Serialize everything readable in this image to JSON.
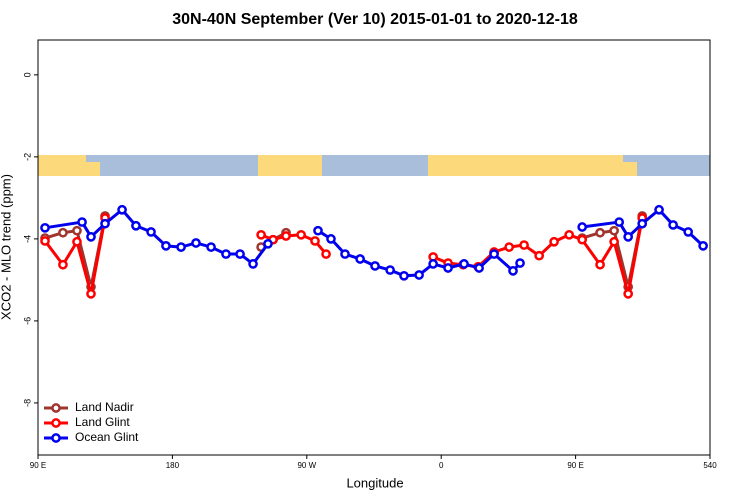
{
  "chart_data": {
    "type": "line",
    "title": "30N-40N September (Ver 10)   2015-01-01 to 2020-12-18",
    "xlabel": "Longitude",
    "ylabel": "XCO2 - MLO trend (ppm)",
    "xlim": [
      90,
      540
    ],
    "ylim": [
      -9.27,
      0.85
    ],
    "xticks": [
      {
        "value": 90,
        "label": "90 E"
      },
      180,
      {
        "value": 270,
        "label": "90 W"
      },
      {
        "value": 360,
        "label": "0"
      },
      {
        "value": 450,
        "label": "90 E"
      },
      540
    ],
    "yticks": [
      0,
      -2,
      -4,
      -6,
      -8
    ],
    "legend": "bottom-left",
    "series": [
      {
        "name": "Land Nadir",
        "color": "#a0342f",
        "x": [
          94.7,
          106.7,
          116.1,
          125.5,
          134.9,
          null,
          239.4,
          247.4,
          256.1,
          null,
          395.4,
          null,
          454.4,
          466.4,
          475.8,
          485.2,
          494.6
        ],
        "values": [
          -3.98,
          -3.85,
          -3.8,
          -5.17,
          -3.44,
          null,
          -4.2,
          -4.02,
          -3.85,
          null,
          -4.34,
          null,
          -3.98,
          -3.85,
          -3.8,
          -5.17,
          -3.44
        ]
      },
      {
        "name": "Land Glint",
        "color": "#ff0000",
        "x": [
          94.7,
          106.7,
          116.1,
          125.5,
          134.9,
          null,
          239.4,
          247.4,
          256.1,
          266.2,
          275.5,
          282.9,
          null,
          354.6,
          364.6,
          374.7,
          384.7,
          395.4,
          405.5,
          415.5,
          425.6,
          435.6,
          445.7,
          454.4,
          466.4,
          475.8,
          485.2,
          494.6
        ],
        "values": [
          -4.05,
          -4.63,
          -4.07,
          -5.34,
          -3.49,
          null,
          -3.9,
          -4.02,
          -3.93,
          -3.9,
          -4.05,
          -4.37,
          null,
          -4.44,
          -4.59,
          -4.63,
          -4.68,
          -4.32,
          -4.2,
          -4.15,
          -4.41,
          -4.07,
          -3.9,
          -4.02,
          -4.63,
          -4.07,
          -5.34,
          -3.49
        ]
      },
      {
        "name": "Ocean Glint",
        "color": "#0000ee",
        "x": [
          94.7,
          119.5,
          125.5,
          134.9,
          146.3,
          155.6,
          165.7,
          175.7,
          185.8,
          195.8,
          205.9,
          215.9,
          225.3,
          234.0,
          244.0,
          null,
          277.5,
          286.2,
          295.6,
          305.7,
          315.7,
          325.8,
          335.1,
          345.2,
          354.6,
          364.6,
          375.3,
          385.4,
          395.4,
          408.1,
          412.8,
          null,
          454.4,
          479.2,
          485.2,
          494.6,
          505.9,
          515.3,
          525.4,
          535.4
        ],
        "values": [
          -3.73,
          -3.59,
          -3.95,
          -3.63,
          -3.29,
          -3.68,
          -3.83,
          -4.17,
          -4.2,
          -4.1,
          -4.2,
          -4.37,
          -4.37,
          -4.61,
          -4.12,
          null,
          -3.8,
          -4.0,
          -4.37,
          -4.49,
          -4.66,
          -4.76,
          -4.9,
          -4.88,
          -4.61,
          -4.71,
          -4.61,
          -4.71,
          -4.37,
          -4.78,
          -4.59,
          null,
          -3.71,
          -3.59,
          -3.95,
          -3.63,
          -3.29,
          -3.66,
          -3.83,
          -4.17
        ]
      }
    ]
  }
}
